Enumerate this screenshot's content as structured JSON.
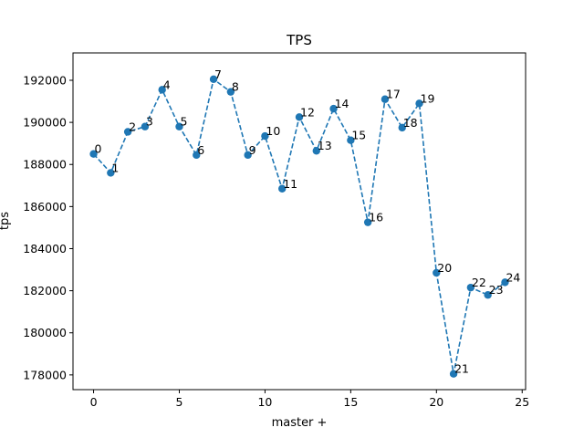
{
  "chart_data": {
    "type": "line",
    "title": "TPS",
    "xlabel": "master +",
    "ylabel": "tps",
    "xlim": [
      -1.2,
      25.2
    ],
    "ylim": [
      177300,
      193300
    ],
    "x_ticks": [
      0,
      5,
      10,
      15,
      20,
      25
    ],
    "y_ticks": [
      178000,
      180000,
      182000,
      184000,
      186000,
      188000,
      190000,
      192000
    ],
    "grid": false,
    "line_style": "dashed",
    "marker": "circle",
    "color": "#1f77b4",
    "series": [
      {
        "x": [
          0,
          1,
          2,
          3,
          4,
          5,
          6,
          7,
          8,
          9,
          10,
          11,
          12,
          13,
          14,
          15,
          16,
          17,
          18,
          19,
          20,
          21,
          22,
          23,
          24
        ],
        "values": [
          188500,
          187600,
          189550,
          189800,
          191550,
          189800,
          188450,
          192050,
          191450,
          188450,
          189350,
          186850,
          190250,
          188650,
          190650,
          189150,
          185250,
          191100,
          189750,
          190900,
          182850,
          178050,
          182150,
          181800,
          182400
        ],
        "point_labels": [
          "0",
          "1",
          "2",
          "3",
          "4",
          "5",
          "6",
          "7",
          "8",
          "9",
          "10",
          "11",
          "12",
          "13",
          "14",
          "15",
          "16",
          "17",
          "18",
          "19",
          "20",
          "21",
          "22",
          "23",
          "24"
        ]
      }
    ]
  }
}
